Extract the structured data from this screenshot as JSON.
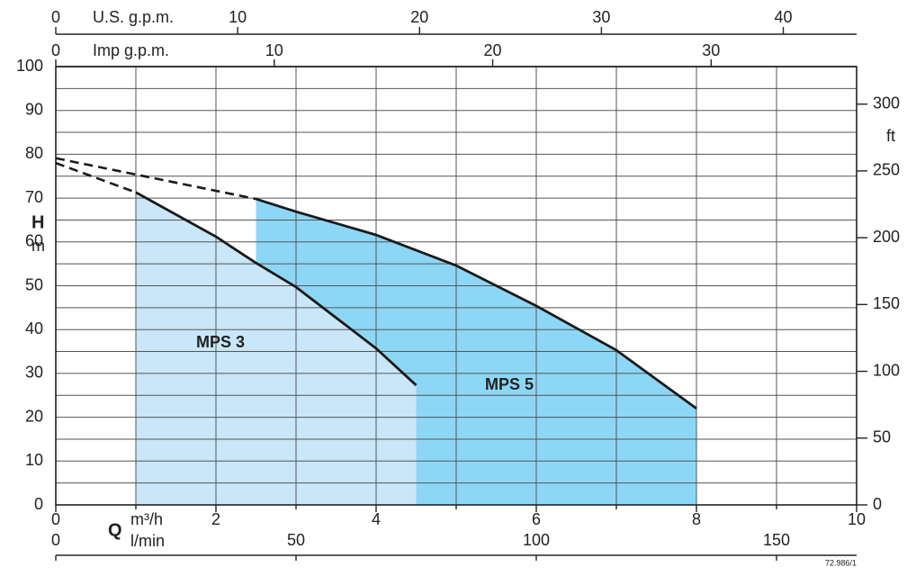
{
  "chart_data": {
    "type": "line",
    "x_symbol": "Q",
    "x_unit": "m³/h",
    "y_symbol": "H",
    "y_unit": "m",
    "y2_unit": "ft",
    "xlim": [
      0,
      10
    ],
    "xticks": [
      0,
      2,
      4,
      6,
      8,
      10
    ],
    "xminorticks": [
      1,
      3,
      5,
      7,
      9
    ],
    "ylim": [
      0,
      100
    ],
    "yticks": [
      0,
      10,
      20,
      30,
      40,
      50,
      60,
      70,
      80,
      90,
      100
    ],
    "yminorticks": [
      5,
      15,
      25,
      35,
      45,
      55,
      65,
      75,
      85,
      95
    ],
    "y2lim": [
      0,
      328.08
    ],
    "y2ticks": [
      0,
      50,
      100,
      150,
      200,
      250,
      300
    ],
    "top_axes": [
      {
        "label": "U.S. g.p.m.",
        "lim": [
          0,
          44.03
        ],
        "ticks": [
          0,
          10,
          20,
          30,
          40
        ]
      },
      {
        "label": "Imp g.p.m.",
        "lim": [
          0,
          36.66
        ],
        "ticks": [
          0,
          10,
          20,
          30
        ]
      }
    ],
    "bottom_axis2": {
      "label": "l/min",
      "lim": [
        0,
        166.67
      ],
      "ticks": [
        0,
        50,
        100,
        150
      ]
    },
    "series": [
      {
        "name": "MPS 3",
        "color": "#1a1a1a",
        "fill": "#c9e7f8",
        "x": [
          1,
          2,
          2.5,
          3,
          4,
          4.5
        ],
        "values": [
          71.3,
          61.2,
          55.2,
          49.7,
          35.7,
          27.3
        ],
        "dashed_x": [
          0,
          1
        ],
        "dashed_values": [
          78,
          71.3
        ]
      },
      {
        "name": "MPS 5",
        "color": "#1a1a1a",
        "fill": "#8dd7f6",
        "x": [
          2.5,
          3,
          4,
          5,
          6,
          7,
          8
        ],
        "values": [
          69.8,
          66.9,
          61.6,
          54.6,
          45.4,
          35.3,
          22
        ],
        "dashed_x": [
          0,
          2.5
        ],
        "dashed_values": [
          79.1,
          69.8
        ]
      }
    ],
    "figure_code": "72.986/1"
  }
}
